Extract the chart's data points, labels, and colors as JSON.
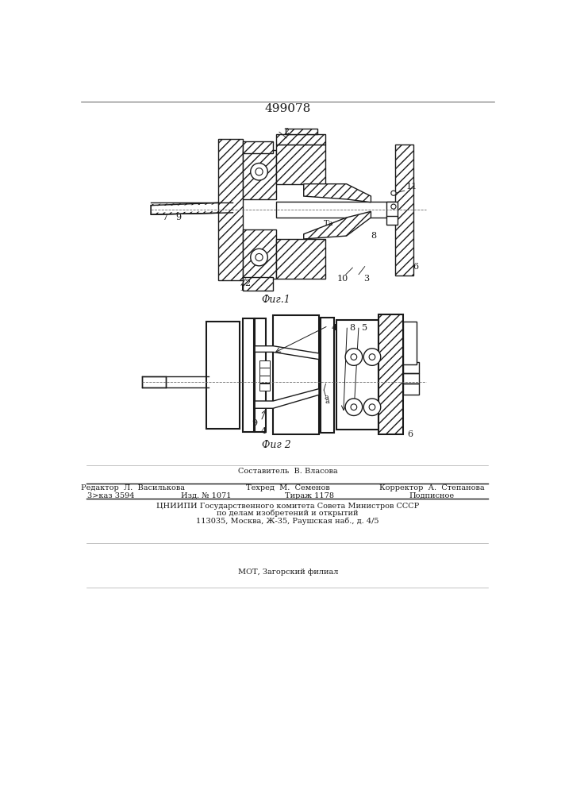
{
  "patent_number": "499078",
  "fig1_caption": "Фиг.1",
  "fig2_caption": "Фиг 2",
  "footer_line1": "Составитель  В. Власова",
  "footer_line2_left": "Редактор  Л.  Василькова",
  "footer_line2_mid": "Техред  М.  Семенов",
  "footer_line2_right": "Корректор  А.  Степанова",
  "footer_line3_left": "3>каз 3594",
  "footer_line3_mid1": "Изд. № 1071",
  "footer_line3_mid2": "Тираж 1178",
  "footer_line3_right": "Подписное",
  "footer_line4": "ЦНИИПИ Государственного комитета Совета Министров СССР",
  "footer_line5": "по делам изобретений и открытий",
  "footer_line6": "113035, Москва, Ж-35, Раушская наб., д. 4/5",
  "footer_line7": "МОТ, Загорский филиал",
  "bg_color": "#ffffff",
  "line_color": "#1a1a1a"
}
